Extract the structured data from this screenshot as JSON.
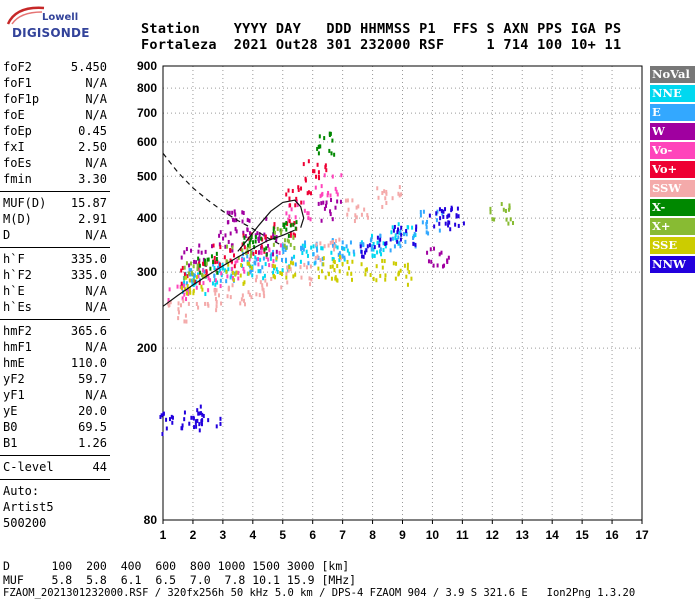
{
  "logo": {
    "line1": "Lowell",
    "line2": "DIGISONDE"
  },
  "header": {
    "line1": "Station    YYYY DAY   DDD HHMMSS P1  FFS S AXN PPS IGA PS",
    "line2": "Fortaleza  2021 Out28 301 232000 RSF     1 714 100 10+ 11"
  },
  "params_group1": [
    {
      "name": "foF2",
      "value": "5.450"
    },
    {
      "name": "foF1",
      "value": "N/A"
    },
    {
      "name": "foF1p",
      "value": "N/A"
    },
    {
      "name": "foE",
      "value": "N/A"
    },
    {
      "name": "foEp",
      "value": "0.45"
    },
    {
      "name": "fxI",
      "value": "2.50"
    },
    {
      "name": "foEs",
      "value": "N/A"
    },
    {
      "name": "fmin",
      "value": "3.30"
    }
  ],
  "params_group2": [
    {
      "name": "MUF(D)",
      "value": "15.87"
    },
    {
      "name": "M(D)",
      "value": "2.91"
    },
    {
      "name": "D",
      "value": "N/A"
    }
  ],
  "params_group3": [
    {
      "name": "h`F",
      "value": "335.0"
    },
    {
      "name": "h`F2",
      "value": "335.0"
    },
    {
      "name": "h`E",
      "value": "N/A"
    },
    {
      "name": "h`Es",
      "value": "N/A"
    }
  ],
  "params_group4": [
    {
      "name": "hmF2",
      "value": "365.6"
    },
    {
      "name": "hmF1",
      "value": "N/A"
    },
    {
      "name": "hmE",
      "value": "110.0"
    },
    {
      "name": "yF2",
      "value": "59.7"
    },
    {
      "name": "yF1",
      "value": "N/A"
    },
    {
      "name": "yE",
      "value": "20.0"
    },
    {
      "name": "B0",
      "value": "69.5"
    },
    {
      "name": "B1",
      "value": "1.26"
    }
  ],
  "clevel": {
    "name": "C-level",
    "value": "44"
  },
  "auto": {
    "line1": "Auto:",
    "line2": "Artist5",
    "line3": "500200"
  },
  "legend": [
    {
      "label": "NoVal",
      "color": "#777777"
    },
    {
      "label": "NNE",
      "color": "#00d8f0"
    },
    {
      "label": "E",
      "color": "#33a8ff"
    },
    {
      "label": "W",
      "color": "#a000a0"
    },
    {
      "label": "Vo-",
      "color": "#ff44bb"
    },
    {
      "label": "Vo+",
      "color": "#ee0033"
    },
    {
      "label": "SSW",
      "color": "#f4aaaa"
    },
    {
      "label": "X-",
      "color": "#008800"
    },
    {
      "label": "X+",
      "color": "#88bb33"
    },
    {
      "label": "SSE",
      "color": "#cccc00"
    },
    {
      "label": "NNW",
      "color": "#2200dd"
    }
  ],
  "bottom": {
    "d_line": "D      100  200  400  600  800 1000 1500 3000 [km]",
    "muf_line": "MUF    5.8  5.8  6.1  6.5  7.0  7.8 10.1 15.9 [MHz]",
    "footer": "FZAOM_2021301232000.RSF / 320fx256h 50 kHz 5.0 km / DPS-4 FZAOM 904 / 3.9 S 321.6 E   Ion2Png 1.3.20"
  },
  "chart_data": {
    "type": "scatter",
    "title": "",
    "xlabel": "",
    "ylabel": "",
    "xlim": [
      1,
      17
    ],
    "ylim": [
      80,
      900
    ],
    "y_scale": "log",
    "x_ticks": [
      1,
      2,
      3,
      4,
      5,
      6,
      7,
      8,
      9,
      10,
      11,
      12,
      13,
      14,
      15,
      16,
      17
    ],
    "y_ticks": [
      80,
      200,
      300,
      400,
      500,
      600,
      700,
      800,
      900
    ],
    "grid": "dotted",
    "legend_position": "right",
    "series": [
      {
        "color": "#00d8f0",
        "x": [
          2.0,
          3.0,
          4.0,
          5.0,
          6.0,
          7.0,
          8.0,
          9.0
        ],
        "y": [
          285,
          300,
          310,
          320,
          330,
          340,
          350,
          370
        ]
      },
      {
        "color": "#33a8ff",
        "x": [
          2.0,
          3.0,
          4.0,
          5.0,
          6.0,
          7.0,
          8.0,
          9.0,
          10.0
        ],
        "y": [
          290,
          305,
          320,
          330,
          335,
          345,
          350,
          360,
          395
        ]
      },
      {
        "color": "#a000a0",
        "x": [
          2.0,
          3.0,
          3.5,
          4.0,
          4.5,
          6.5,
          10.2
        ],
        "y": [
          330,
          360,
          400,
          380,
          350,
          420,
          330
        ]
      },
      {
        "color": "#ff44bb",
        "x": [
          1.5,
          2.5,
          3.5,
          4.5,
          5.5,
          6.5
        ],
        "y": [
          270,
          290,
          310,
          330,
          420,
          480
        ]
      },
      {
        "color": "#ee0033",
        "x": [
          2.0,
          3.0,
          4.0,
          5.0,
          5.5,
          6.0
        ],
        "y": [
          300,
          330,
          350,
          380,
          450,
          520
        ]
      },
      {
        "color": "#f4aaaa",
        "x": [
          1.5,
          2.5,
          3.5,
          4.5,
          5.5,
          6.5,
          7.5,
          8.5
        ],
        "y": [
          245,
          260,
          270,
          280,
          300,
          340,
          420,
          450
        ]
      },
      {
        "color": "#008800",
        "x": [
          2.5,
          4.0,
          5.0,
          6.5
        ],
        "y": [
          320,
          350,
          380,
          600
        ]
      },
      {
        "color": "#88bb33",
        "x": [
          2.0,
          3.5,
          5.0,
          12.3
        ],
        "y": [
          300,
          330,
          360,
          415
        ]
      },
      {
        "color": "#cccc00",
        "x": [
          2.0,
          3.5,
          5.0,
          6.5,
          7.0,
          8.0,
          9.0
        ],
        "y": [
          280,
          300,
          310,
          310,
          305,
          305,
          300
        ]
      },
      {
        "color": "#2200dd",
        "x": [
          1.3,
          2.0,
          2.5,
          8.0,
          9.0,
          10.3,
          10.6
        ],
        "y": [
          135,
          140,
          137,
          345,
          365,
          400,
          410
        ]
      }
    ],
    "traces": [
      {
        "style": "dashed",
        "x": [
          1.0,
          1.5,
          2.0,
          2.5,
          3.0,
          3.5,
          4.0,
          4.5,
          5.0
        ],
        "y": [
          565,
          510,
          470,
          440,
          415,
          395,
          378,
          360,
          345
        ]
      },
      {
        "style": "solid",
        "x": [
          1.0,
          1.5,
          2.0,
          2.5,
          3.0,
          3.5,
          4.0,
          4.5,
          5.0,
          5.4
        ],
        "y": [
          250,
          265,
          280,
          295,
          310,
          325,
          340,
          355,
          365,
          375
        ]
      },
      {
        "style": "solid",
        "x": [
          3.5,
          3.8,
          4.2,
          4.6,
          5.0,
          5.4,
          5.6,
          5.7,
          5.6
        ],
        "y": [
          335,
          355,
          385,
          415,
          435,
          440,
          425,
          400,
          380
        ]
      }
    ]
  }
}
